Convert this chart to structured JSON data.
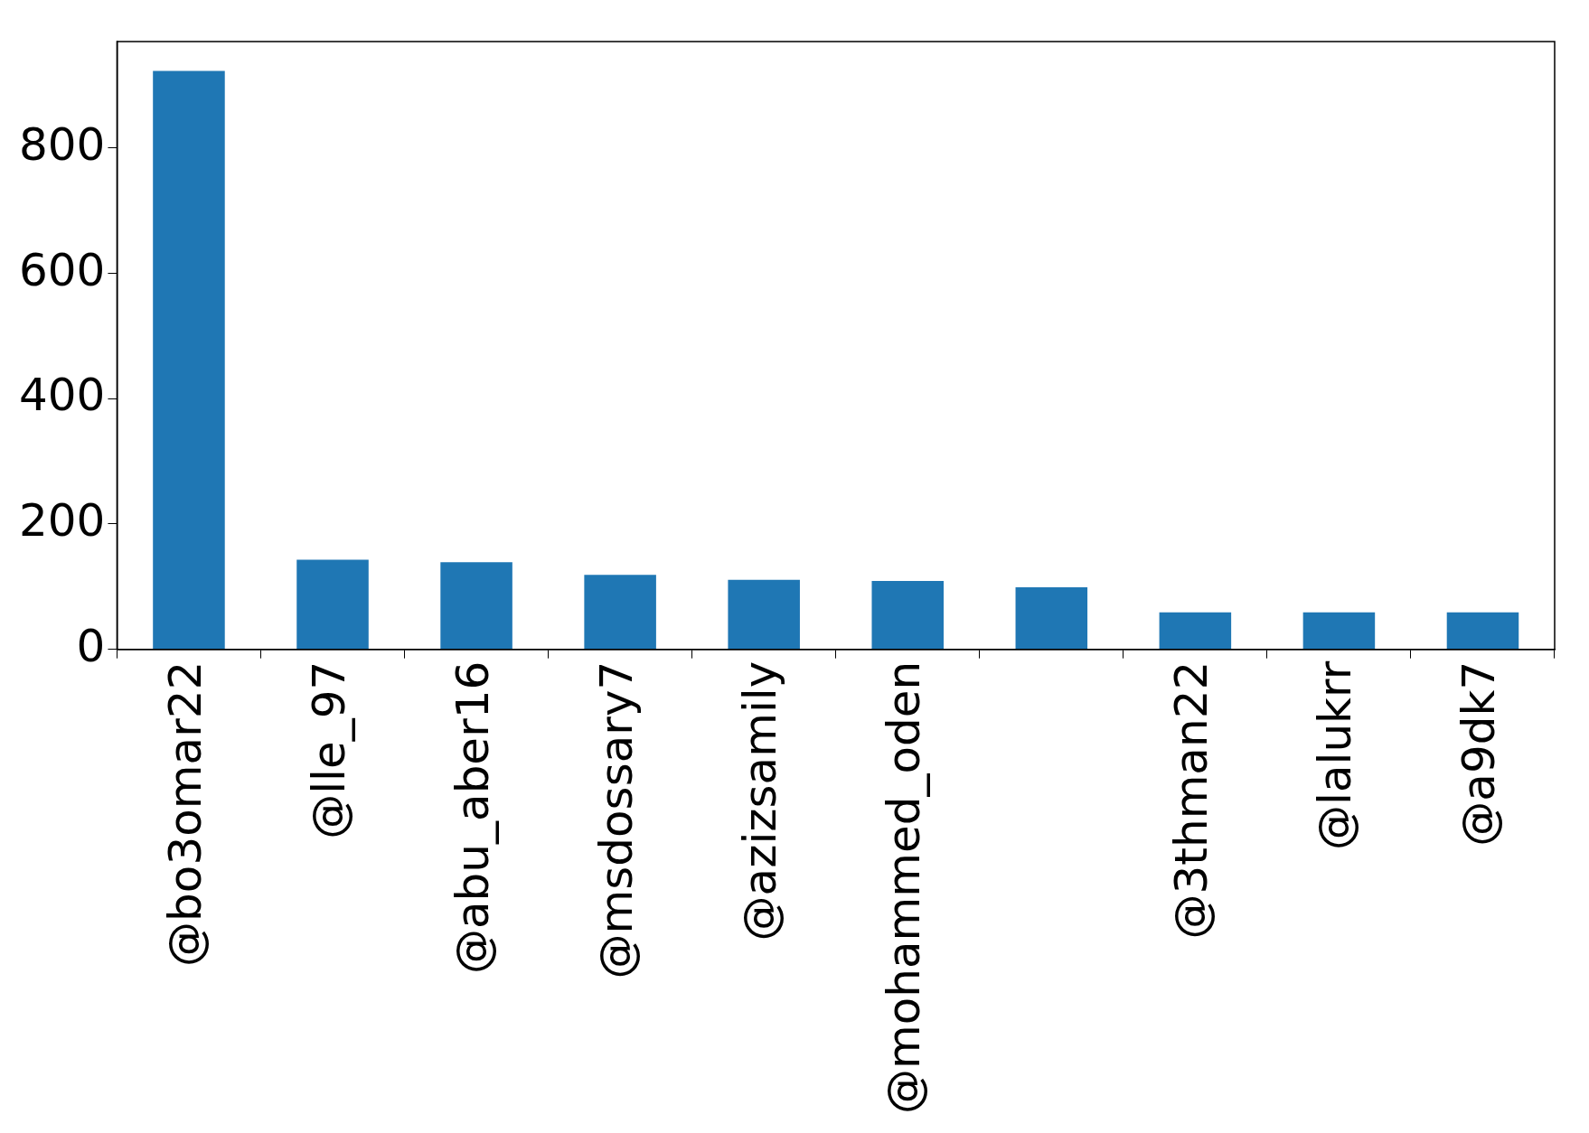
{
  "chart_data": {
    "type": "bar",
    "categories": [
      "@bo3omar22",
      "@lle_97",
      "@abu_aber16",
      "@msdossary7",
      "@azizsamily",
      "@mohammed_oden",
      null,
      "@3thman22",
      "@lalukrr",
      "@a9dk7"
    ],
    "values": [
      923,
      143,
      139,
      119,
      111,
      109,
      99,
      59,
      59,
      59
    ],
    "color": "#1f77b4",
    "ylim": [
      0,
      970
    ],
    "yticks": [
      0,
      200,
      400,
      600,
      800
    ],
    "grid": false,
    "legend": false
  }
}
